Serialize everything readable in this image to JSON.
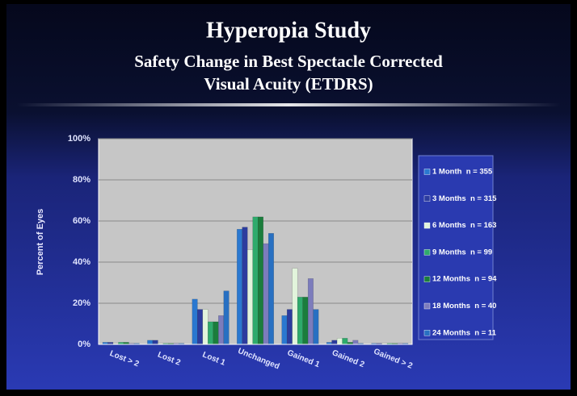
{
  "chart_data": {
    "type": "bar",
    "title": "Hyperopia Study",
    "subtitle": [
      "Safety Change in Best Spectacle Corrected",
      "Visual Acuity (ETDRS)"
    ],
    "y_label": "Percent of Eyes",
    "categories": [
      "Lost > 2",
      "Lost 2",
      "Lost 1",
      "Unchanged",
      "Gained 1",
      "Gained 2",
      "Gained > 2"
    ],
    "series": [
      {
        "name": "1 Month  n = 355",
        "color": "#2a78d0",
        "values": [
          1,
          2,
          22,
          56,
          14,
          1,
          0.5
        ]
      },
      {
        "name": "3 Months  n = 315",
        "color": "#2c3c9e",
        "values": [
          1,
          2,
          17,
          57,
          17,
          2,
          0.5
        ]
      },
      {
        "name": "6 Months  n = 163",
        "color": "#e2f4dc",
        "values": [
          0.5,
          0.5,
          17,
          46,
          37,
          3,
          0.5
        ]
      },
      {
        "name": "9 Months  n = 99",
        "color": "#2eaa6c",
        "values": [
          1,
          0.5,
          11,
          62,
          23,
          3,
          0.5
        ]
      },
      {
        "name": "12 Months  n = 94",
        "color": "#1b7d3c",
        "values": [
          1,
          0.5,
          11,
          62,
          23,
          1,
          0.5
        ]
      },
      {
        "name": "18 Months  n = 40",
        "color": "#7c7cbc",
        "values": [
          0.5,
          0.5,
          14,
          49,
          32,
          2,
          0.5
        ]
      },
      {
        "name": "24 Months  n = 11",
        "color": "#2870c2",
        "values": [
          0.5,
          0.5,
          26,
          54,
          17,
          0.5,
          0.5
        ]
      }
    ],
    "ylim": [
      0,
      100
    ],
    "yticks": [
      {
        "value": 0,
        "label": "0%"
      },
      {
        "value": 20,
        "label": "20%"
      },
      {
        "value": 40,
        "label": "40%"
      },
      {
        "value": 60,
        "label": "60%"
      },
      {
        "value": 80,
        "label": "80%"
      },
      {
        "value": 100,
        "label": "100%"
      }
    ],
    "grid": true,
    "legend": "right"
  }
}
